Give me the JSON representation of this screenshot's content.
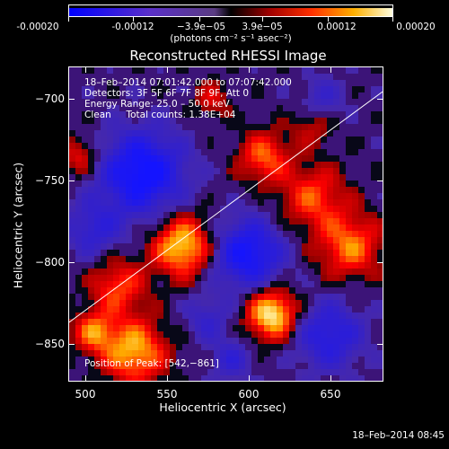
{
  "colorbar": {
    "ticks": [
      "-0.00020",
      "-0.00012",
      "−3.9e−05",
      "3.9e−05",
      "0.00012",
      "0.00020"
    ],
    "unit_label": "(photons cm⁻² s⁻¹ asec⁻²)",
    "range": [
      -0.0002,
      0.0002
    ]
  },
  "plot": {
    "title": "Reconstructed RHESSI Image",
    "info_lines": [
      "18–Feb–2014 07:01:42.000 to 07:07:42.000",
      "Detectors: 3F 5F 6F 7F 8F 9F, Att 0",
      "Energy Range: 25.0 – 50.0 keV",
      "Clean     Total counts: 1.38E+04"
    ],
    "position_label": "Position of Peak: [542,−861]",
    "x_axis_label": "Heliocentric X (arcsec)",
    "y_axis_label": "Heliocentric Y (arcsec)",
    "x_ticks": [
      "500",
      "550",
      "600",
      "650"
    ],
    "y_ticks": [
      "−700",
      "−750",
      "−800",
      "−850"
    ]
  },
  "timestamp": "18–Feb–2014 08:45",
  "colors": {
    "background": "#000000",
    "negative": "#1a1aff",
    "positive_low": "#c00000",
    "positive_mid": "#ff8000",
    "positive_high": "#ffffa0"
  },
  "chart_data": {
    "type": "heatmap",
    "title": "Reconstructed RHESSI Image",
    "xlabel": "Heliocentric X (arcsec)",
    "ylabel": "Heliocentric Y (arcsec)",
    "xlim": [
      490,
      683
    ],
    "ylim": [
      -873,
      -680
    ],
    "color_range": [
      -0.0002,
      0.0002
    ],
    "peak_position": [
      542,
      -861
    ],
    "sources": [
      {
        "x": 560,
        "y": -790,
        "amp": 0.9,
        "sigma": 13
      },
      {
        "x": 520,
        "y": -815,
        "amp": 0.55,
        "sigma": 12
      },
      {
        "x": 530,
        "y": -855,
        "amp": 0.8,
        "sigma": 14
      },
      {
        "x": 505,
        "y": -843,
        "amp": 0.6,
        "sigma": 9
      },
      {
        "x": 615,
        "y": -832,
        "amp": 1.0,
        "sigma": 11
      },
      {
        "x": 640,
        "y": -760,
        "amp": 0.55,
        "sigma": 14
      },
      {
        "x": 663,
        "y": -790,
        "amp": 0.65,
        "sigma": 14
      },
      {
        "x": 610,
        "y": -735,
        "amp": 0.6,
        "sigma": 11
      },
      {
        "x": 497,
        "y": -735,
        "amp": 0.45,
        "sigma": 8
      },
      {
        "x": 578,
        "y": -700,
        "amp": 0.35,
        "sigma": 8
      },
      {
        "x": 640,
        "y": -715,
        "amp": 0.35,
        "sigma": 9
      },
      {
        "x": 535,
        "y": -745,
        "amp": -0.95,
        "sigma": 18
      },
      {
        "x": 600,
        "y": -795,
        "amp": -0.85,
        "sigma": 15
      },
      {
        "x": 650,
        "y": -845,
        "amp": -0.6,
        "sigma": 15
      },
      {
        "x": 505,
        "y": -780,
        "amp": -0.45,
        "sigma": 12
      },
      {
        "x": 645,
        "y": -700,
        "amp": -0.35,
        "sigma": 10
      },
      {
        "x": 575,
        "y": -835,
        "amp": -0.35,
        "sigma": 10
      },
      {
        "x": 590,
        "y": -860,
        "amp": -0.4,
        "sigma": 9
      }
    ],
    "line": {
      "x": [
        490,
        683
      ],
      "y": [
        -837,
        -695
      ]
    }
  }
}
